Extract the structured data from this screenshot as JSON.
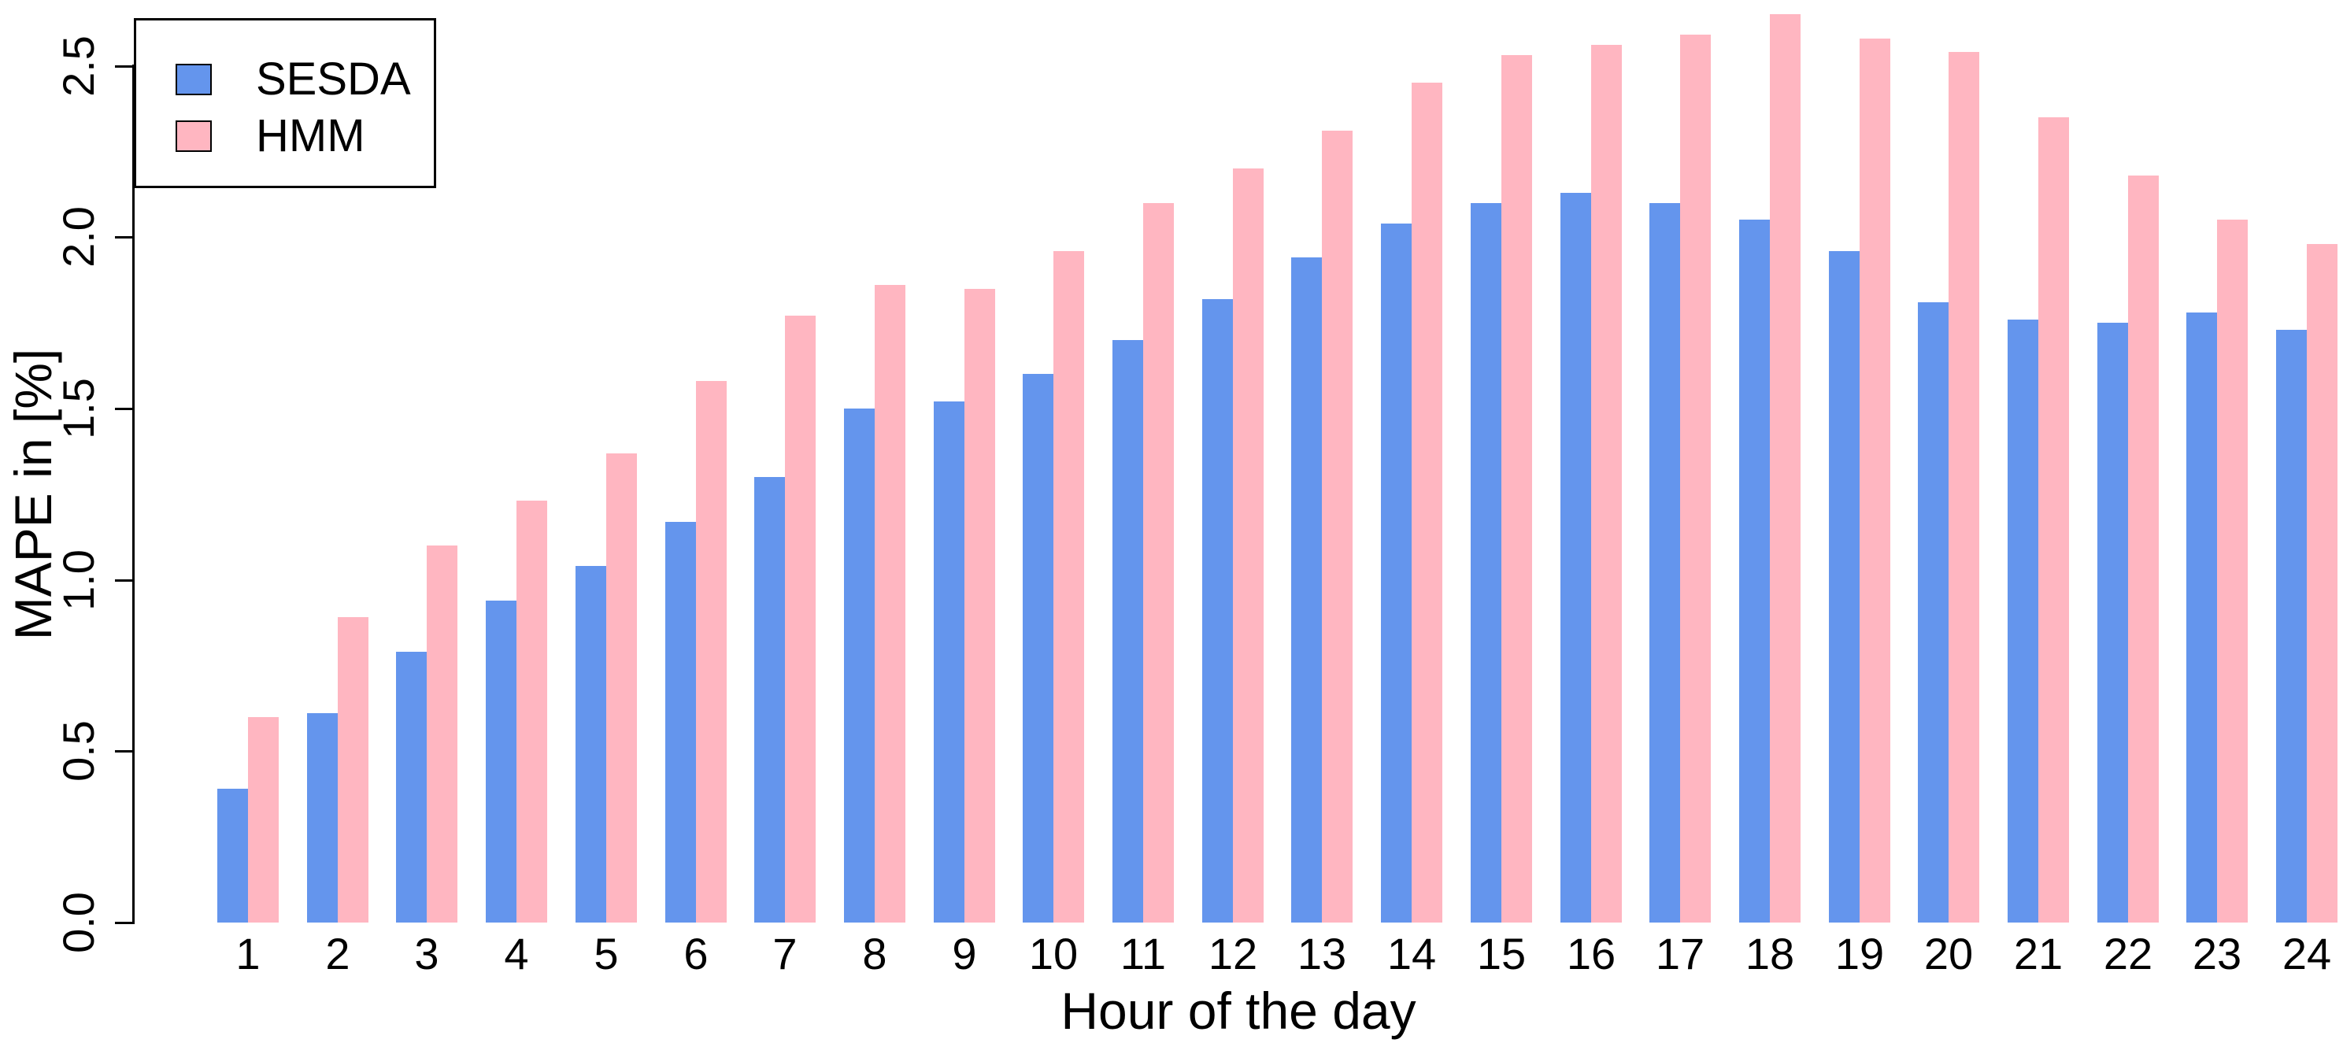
{
  "chart_data": {
    "type": "bar",
    "title": "",
    "xlabel": "Hour of the day",
    "ylabel": "MAPE in [%]",
    "categories": [
      "1",
      "2",
      "3",
      "4",
      "5",
      "6",
      "7",
      "8",
      "9",
      "10",
      "11",
      "12",
      "13",
      "14",
      "15",
      "16",
      "17",
      "18",
      "19",
      "20",
      "21",
      "22",
      "23",
      "24"
    ],
    "series": [
      {
        "name": "SESDA",
        "color": "#6495ED",
        "values": [
          0.39,
          0.61,
          0.79,
          0.94,
          1.04,
          1.17,
          1.3,
          1.5,
          1.52,
          1.6,
          1.7,
          1.82,
          1.94,
          2.04,
          2.1,
          2.13,
          2.1,
          2.05,
          1.96,
          1.81,
          1.76,
          1.75,
          1.78,
          1.73
        ]
      },
      {
        "name": "HMM",
        "color": "#FFB6C1",
        "values": [
          0.6,
          0.89,
          1.1,
          1.23,
          1.37,
          1.58,
          1.77,
          1.86,
          1.85,
          1.96,
          2.1,
          2.2,
          2.31,
          2.45,
          2.53,
          2.56,
          2.59,
          2.65,
          2.58,
          2.54,
          2.35,
          2.18,
          2.05,
          1.98
        ]
      }
    ],
    "y_ticks": [
      0,
      0.5,
      1,
      1.5,
      2,
      2.5
    ],
    "y_tick_labels": [
      "0.0",
      "0.5",
      "1.0",
      "1.5",
      "2.0",
      "2.5"
    ],
    "ylim": [
      0,
      2.75
    ],
    "grid": false,
    "legend_position": "top-left"
  }
}
